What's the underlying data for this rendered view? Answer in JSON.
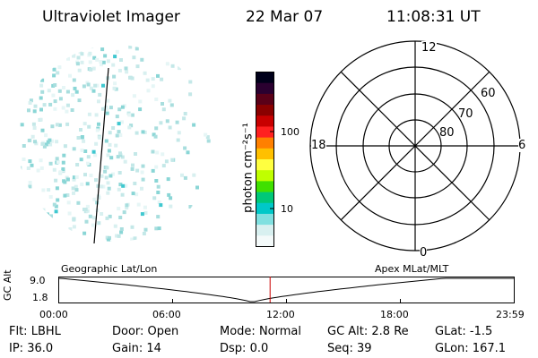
{
  "header": {
    "instrument": "Ultraviolet Imager",
    "date": "22 Mar 07",
    "time": "11:08:31 UT"
  },
  "colorbar": {
    "unit_label": "photon cm⁻²s⁻¹",
    "ticks": [
      "100",
      "10"
    ],
    "colors": [
      "#00001a",
      "#2a0030",
      "#5a0018",
      "#8a0000",
      "#c80000",
      "#ff2020",
      "#ff8000",
      "#ffc000",
      "#ffff40",
      "#c0ff00",
      "#40e000",
      "#00c878",
      "#00c8c8",
      "#80e0e0",
      "#d8f0f0",
      "#f4fafa"
    ]
  },
  "polar_plot": {
    "mlt_labels": {
      "top": "12",
      "bottom": "0",
      "left": "18",
      "right": "6"
    },
    "lat_labels": [
      "60",
      "70",
      "80"
    ]
  },
  "timeline": {
    "left_title": "Geographic Lat/Lon",
    "right_title": "Apex  MLat/MLT",
    "y_axis_label": "GC Alt",
    "y_ticks": [
      "9.0",
      "1.8"
    ],
    "x_ticks": [
      "00:00",
      "06:00",
      "12:00",
      "18:00",
      "23:59"
    ],
    "marker_color": "#cc0000",
    "current_time_fraction": 0.464
  },
  "status": {
    "row1": [
      {
        "key": "Flt:",
        "value": "LBHL"
      },
      {
        "key": "Door:",
        "value": "Open"
      },
      {
        "key": "Mode:",
        "value": "Normal"
      },
      {
        "key": "GC Alt:",
        "value": "2.8 Re"
      },
      {
        "key": "GLat:",
        "value": "-1.5"
      }
    ],
    "row2": [
      {
        "key": "IP:",
        "value": "36.0"
      },
      {
        "key": "Gain:",
        "value": "14"
      },
      {
        "key": "Dsp:",
        "value": "0.0"
      },
      {
        "key": "Seq:",
        "value": "39"
      },
      {
        "key": "GLon:",
        "value": "167.1"
      }
    ]
  }
}
